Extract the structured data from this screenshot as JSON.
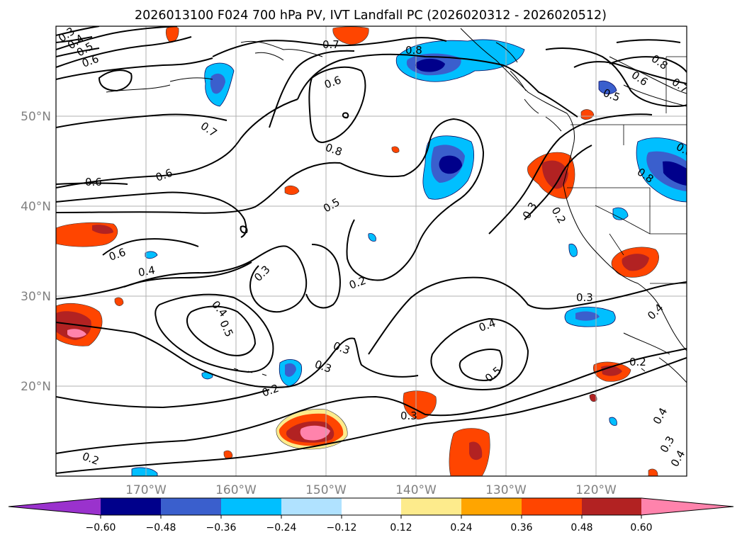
{
  "title": "2026013100 F024 700 hPa PV, IVT Landfall PC (2026020312 - 2026020512)",
  "axes": {
    "lat_labels": [
      "50°N",
      "40°N",
      "30°N",
      "20°N"
    ],
    "lon_labels": [
      "170°W",
      "160°W",
      "150°W",
      "140°W",
      "130°W",
      "120°W"
    ]
  },
  "colorbar": {
    "tick_labels": [
      "−0.60",
      "−0.48",
      "−0.36",
      "−0.24",
      "−0.12",
      "0.12",
      "0.24",
      "0.36",
      "0.48",
      "0.60"
    ],
    "colors": [
      "#9a32cd",
      "#00008b",
      "#3a5fcd",
      "#00bfff",
      "#b0e2ff",
      "#ffffff",
      "#fdeb8c",
      "#ffa500",
      "#ff4500",
      "#b22222",
      "#ff83ac"
    ]
  },
  "contour_labels": [
    "0.3",
    "0.4",
    "0.5",
    "0.6",
    "0.7",
    "0.8",
    "0.6",
    "0.7",
    "0.8",
    "0.6",
    "0.5",
    "0.6",
    "0.8",
    "0.7",
    "0.6",
    "0.5",
    "0.8",
    "0.6",
    "0.6",
    "0.4",
    "0.3",
    "0.2",
    "0.4",
    "0.5",
    "0.2",
    "0.3",
    "0.3",
    "0.4",
    "0.5",
    "0.3",
    "0.4",
    "0.3",
    "0.2",
    "0.3",
    "0.2",
    "0.4",
    "0.2",
    "0.3",
    "0.4"
  ],
  "chart_data": {
    "type": "contour-map",
    "title": "2026013100 F024 700 hPa PV, IVT Landfall PC (2026020312 - 2026020512)",
    "projection": "lat-lon",
    "lon_range": [
      -180,
      -110
    ],
    "lat_range": [
      10,
      60
    ],
    "contour_field": "700 hPa PV",
    "contour_levels": [
      0.2,
      0.3,
      0.4,
      0.5,
      0.6,
      0.7,
      0.8
    ],
    "shaded_field": "IVT Landfall PC",
    "color_bounds": [
      -0.6,
      -0.48,
      -0.36,
      -0.24,
      -0.12,
      0.12,
      0.24,
      0.36,
      0.48,
      0.6
    ],
    "colorbar_extend": "both"
  }
}
